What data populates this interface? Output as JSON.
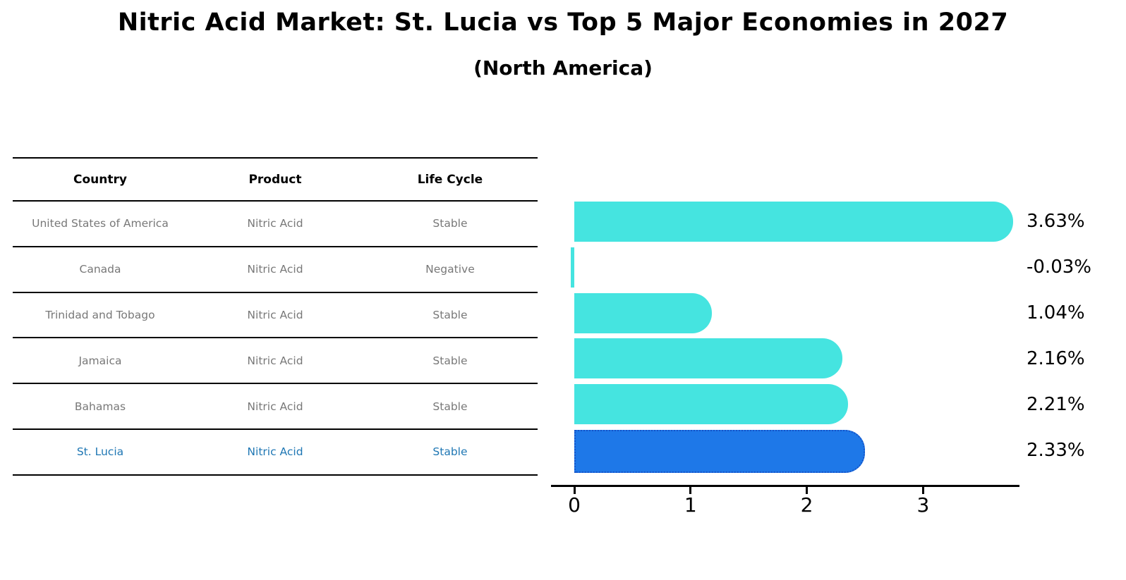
{
  "title": "Nitric Acid Market: St. Lucia vs Top 5 Major Economies in 2027",
  "subtitle": "(North America)",
  "table": {
    "headers": [
      "Country",
      "Product",
      "Life Cycle"
    ],
    "rows": [
      {
        "country": "United States of America",
        "product": "Nitric Acid",
        "life_cycle": "Stable",
        "highlighted": false
      },
      {
        "country": "Canada",
        "product": "Nitric Acid",
        "life_cycle": "Negative",
        "highlighted": false
      },
      {
        "country": "Trinidad and Tobago",
        "product": "Nitric Acid",
        "life_cycle": "Stable",
        "highlighted": false
      },
      {
        "country": "Jamaica",
        "product": "Nitric Acid",
        "life_cycle": "Stable",
        "highlighted": false
      },
      {
        "country": "Bahamas",
        "product": "Nitric Acid",
        "life_cycle": "Stable",
        "highlighted": false
      },
      {
        "country": "St. Lucia",
        "product": "Nitric Acid",
        "life_cycle": "Stable",
        "highlighted": true
      }
    ]
  },
  "chart_data": {
    "type": "bar",
    "orientation": "horizontal",
    "title": "Nitric Acid Market: St. Lucia vs Top 5 Major Economies in 2027 (North America)",
    "categories": [
      "United States of America",
      "Canada",
      "Trinidad and Tobago",
      "Jamaica",
      "Bahamas",
      "St. Lucia"
    ],
    "values": [
      3.63,
      -0.03,
      1.04,
      2.16,
      2.21,
      2.33
    ],
    "labels": [
      "3.63%",
      "-0.03%",
      "1.04%",
      "2.16%",
      "2.21%",
      "2.33%"
    ],
    "unit": "percent",
    "x_ticks": [
      "0",
      "1",
      "2",
      "3"
    ],
    "x_tick_values": [
      0,
      1,
      2,
      3
    ],
    "xlim": [
      -0.2,
      3.85
    ],
    "grid": false,
    "legend": false,
    "highlight_index": 5,
    "highlight_category": "St. Lucia"
  },
  "colors": {
    "bar": "#45e4e0",
    "highlight_bar": "#1e78e8",
    "highlight_border": "#1553c8",
    "table_text": "#787878",
    "highlight_text": "#1f77b4",
    "axis": "#000000",
    "background": "#ffffff"
  }
}
